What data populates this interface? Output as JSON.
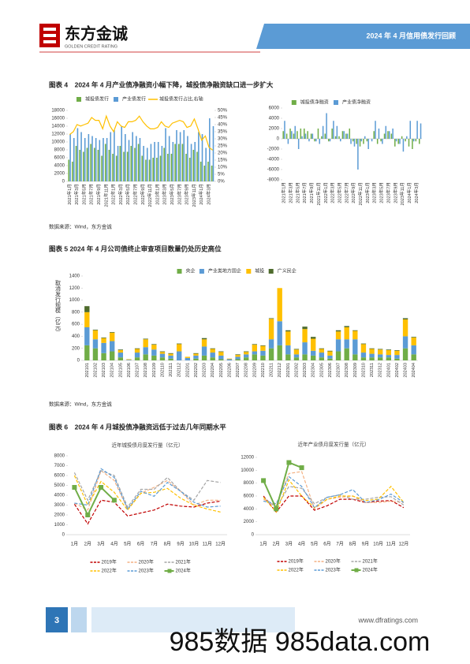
{
  "header": {
    "logo": "东方金诚",
    "logo_sub": "GOLDEN CREDIT RATING",
    "banner": "2024 年 4 月信用债发行回顾"
  },
  "figures": [
    {
      "caption": "图表 4　2024 年 4 月产业债净融资小幅下降，城投债净融资缺口进一步扩大",
      "source": "数据来源：Wind，东方金诚"
    },
    {
      "caption": "图表 5  2024 年 4 月公司债终止审查项目数量仍处历史高位",
      "source": "数据来源：Wind，东方金诚"
    },
    {
      "caption": "图表 6　2024 年 4 月城投债净融资远低于过去几年同期水平"
    }
  ],
  "footer": {
    "page": "3",
    "url": "www.dfratings.com"
  },
  "watermark": "985数据 985data.com",
  "chart_data": [
    {
      "type": "bar",
      "categories": [
        "2021年1月",
        null,
        "2021年3月",
        null,
        "2021年5月",
        null,
        "2021年7月",
        null,
        "2021年9月",
        null,
        "2021年11月",
        null,
        "2022年1月",
        null,
        "2022年3月",
        null,
        "2022年5月",
        null,
        "2022年7月",
        null,
        "2022年9月",
        null,
        "2022年11月",
        null,
        "2023年1月",
        null,
        "2023年3月",
        null,
        "2023年5月",
        null,
        "2023年7月",
        null,
        "2023年9月",
        null,
        "2023年11月",
        null,
        "2024年1月",
        null,
        "2024年3月",
        null
      ],
      "series": [
        {
          "name": "城投债发行",
          "color": "#70ad47",
          "values": [
            5500,
            5000,
            9000,
            8000,
            7500,
            8500,
            9500,
            8500,
            8000,
            6500,
            9500,
            8000,
            7000,
            6500,
            9000,
            7500,
            7500,
            9000,
            8500,
            9500,
            6500,
            5500,
            5500,
            6000,
            6000,
            6500,
            8500,
            7000,
            7000,
            9500,
            9500,
            9500,
            7000,
            6000,
            8000,
            7500,
            5000,
            4000,
            5000,
            4000
          ]
        },
        {
          "name": "产业债发行",
          "color": "#5b9bd5",
          "values": [
            12000,
            11000,
            13500,
            12500,
            11000,
            12000,
            11500,
            11000,
            10500,
            11000,
            11000,
            12500,
            13000,
            9000,
            14000,
            12000,
            10500,
            12500,
            11500,
            11000,
            9000,
            8500,
            9500,
            10000,
            10000,
            9000,
            13500,
            11500,
            10000,
            13000,
            12500,
            13000,
            11500,
            9500,
            10000,
            12500,
            12000,
            8500,
            16000,
            14000
          ]
        },
        {
          "name": "城投债发行占比,右轴",
          "color": "#ffc000",
          "type": "line",
          "axis": "y2",
          "values": [
            33,
            35,
            40,
            39,
            40,
            41,
            45,
            43,
            43,
            37,
            46,
            39,
            35,
            42,
            39,
            38,
            42,
            42,
            43,
            46,
            42,
            39,
            37,
            37,
            38,
            42,
            39,
            38,
            41,
            42,
            43,
            42,
            38,
            39,
            44,
            37,
            29,
            32,
            24,
            22
          ]
        }
      ],
      "ylim": [
        0,
        18000
      ],
      "yticks": [
        0,
        2000,
        4000,
        6000,
        8000,
        10000,
        12000,
        14000,
        16000,
        18000
      ],
      "y2lim": [
        0,
        50
      ],
      "y2ticks": [
        {
          "value": 0,
          "label": "0%"
        },
        {
          "value": 5,
          "label": "5%"
        },
        {
          "value": 10,
          "label": "10%"
        },
        {
          "value": 15,
          "label": "15%"
        },
        {
          "value": 20,
          "label": "20%"
        },
        {
          "value": 25,
          "label": "25%"
        },
        {
          "value": 30,
          "label": "30%"
        },
        {
          "value": 35,
          "label": "35%"
        },
        {
          "value": 40,
          "label": "40%"
        },
        {
          "value": 45,
          "label": "45%"
        },
        {
          "value": 50,
          "label": "50%"
        }
      ],
      "grid": false
    },
    {
      "type": "bar",
      "categories": [
        "2021年1月",
        null,
        "2021年3月",
        null,
        "2021年5月",
        null,
        "2021年7月",
        null,
        "2021年9月",
        null,
        "2021年11月",
        null,
        "2022年1月",
        null,
        "2022年3月",
        null,
        "2022年5月",
        null,
        "2022年7月",
        null,
        "2022年9月",
        null,
        "2022年11月",
        null,
        "2023年1月",
        null,
        "2023年3月",
        null,
        "2023年5月",
        null,
        "2023年7月",
        null,
        "2023年9月",
        null,
        "2023年11月",
        null,
        "2024年1月",
        null,
        "2024年3月",
        null
      ],
      "series": [
        {
          "name": "城投债净融资",
          "color": "#70ad47",
          "values": [
            1500,
            1000,
            2000,
            1000,
            1500,
            2000,
            2000,
            1500,
            1000,
            -500,
            2000,
            500,
            1000,
            -500,
            2000,
            500,
            500,
            1500,
            1000,
            2000,
            -500,
            -1000,
            -1500,
            -1000,
            -500,
            0,
            1500,
            -1000,
            -500,
            1000,
            1500,
            1000,
            -1500,
            -1000,
            500,
            -500,
            -1500,
            -2000,
            -500,
            -1000
          ]
        },
        {
          "name": "产业债净融资",
          "color": "#5b9bd5",
          "values": [
            3500,
            -1000,
            1500,
            2500,
            -2000,
            500,
            1000,
            -500,
            1000,
            -500,
            -1000,
            2500,
            5000,
            -500,
            3500,
            2500,
            -500,
            1500,
            1000,
            -1000,
            -1500,
            -6000,
            -500,
            500,
            -2000,
            -500,
            3500,
            2000,
            -1000,
            2500,
            1500,
            2000,
            -500,
            -1000,
            -2500,
            500,
            3500,
            -500,
            3500,
            3000
          ]
        }
      ],
      "ylim": [
        -8000,
        6000
      ],
      "yticks": [
        -8000,
        -6000,
        -4000,
        -2000,
        0,
        2000,
        4000,
        6000
      ],
      "grid": false
    },
    {
      "type": "stacked_bar",
      "y_label": "取消发行规模（亿元）",
      "categories": [
        "202101",
        "202102",
        "202103",
        "202104",
        "202105",
        "202106",
        "202107",
        "202108",
        "202109",
        "202110",
        "202111",
        "202112",
        "202201",
        "202202",
        "202203",
        "202204",
        "202205",
        "202206",
        "202207",
        "202208",
        "202209",
        "202210",
        "202211",
        "202212",
        "202301",
        "202302",
        "202303",
        "202304",
        "202305",
        "202306",
        "202307",
        "202308",
        "202309",
        "202310",
        "202311",
        "202312",
        "202401",
        "202402",
        "202403",
        "202404"
      ],
      "series": [
        {
          "name": "央企",
          "color": "#70ad47",
          "values": [
            250,
            200,
            120,
            150,
            50,
            0,
            50,
            100,
            80,
            50,
            30,
            0,
            0,
            30,
            80,
            50,
            20,
            0,
            20,
            50,
            100,
            80,
            200,
            250,
            100,
            50,
            100,
            80,
            50,
            30,
            150,
            200,
            100,
            50,
            50,
            50,
            50,
            30,
            200,
            100
          ]
        },
        {
          "name": "产业类地方国企",
          "color": "#5b9bd5",
          "values": [
            300,
            150,
            170,
            170,
            80,
            10,
            80,
            120,
            100,
            60,
            50,
            150,
            40,
            50,
            150,
            80,
            60,
            20,
            40,
            50,
            50,
            80,
            150,
            400,
            150,
            50,
            200,
            80,
            80,
            50,
            200,
            150,
            250,
            80,
            60,
            50,
            40,
            60,
            200,
            150
          ]
        },
        {
          "name": "城投",
          "color": "#ffc000",
          "values": [
            250,
            150,
            80,
            140,
            40,
            10,
            60,
            130,
            80,
            30,
            30,
            120,
            20,
            30,
            120,
            60,
            60,
            10,
            30,
            40,
            110,
            80,
            340,
            550,
            230,
            80,
            220,
            200,
            60,
            70,
            130,
            200,
            140,
            140,
            80,
            80,
            80,
            70,
            280,
            130
          ]
        },
        {
          "name": "广义民企",
          "color": "#4e6b2c",
          "values": [
            100,
            10,
            10,
            10,
            10,
            0,
            10,
            10,
            10,
            10,
            10,
            10,
            0,
            10,
            20,
            10,
            10,
            0,
            10,
            10,
            10,
            10,
            10,
            0,
            20,
            10,
            40,
            30,
            10,
            10,
            20,
            20,
            10,
            10,
            10,
            10,
            10,
            10,
            20,
            10
          ]
        }
      ],
      "ylim": [
        0,
        1400
      ],
      "yticks": [
        0,
        200,
        400,
        600,
        800,
        1000,
        1200,
        1400
      ],
      "grid": false
    },
    {
      "type": "line",
      "title": "近年城投债月度发行量（亿元）",
      "categories": [
        "1月",
        "2月",
        "3月",
        "4月",
        "5月",
        "6月",
        "7月",
        "8月",
        "9月",
        "10月",
        "11月",
        "12月"
      ],
      "series": [
        {
          "name": "2019年",
          "color": "#c00000",
          "dash": true,
          "values": [
            3100,
            1100,
            3500,
            3300,
            1900,
            2200,
            2500,
            3100,
            2900,
            2800,
            3200,
            3400
          ]
        },
        {
          "name": "2020年",
          "color": "#f4b183",
          "dash": true,
          "values": [
            3200,
            2500,
            6500,
            5500,
            2600,
            4200,
            4800,
            5500,
            4400,
            3000,
            3500,
            3500
          ]
        },
        {
          "name": "2021年",
          "color": "#a5a5a5",
          "dash": true,
          "values": [
            6300,
            3500,
            6500,
            6000,
            2800,
            4600,
            4600,
            5800,
            4400,
            3500,
            5500,
            5300
          ]
        },
        {
          "name": "2022年",
          "color": "#ffc000",
          "dash": true,
          "values": [
            6000,
            3000,
            5400,
            4300,
            2500,
            4200,
            4300,
            4700,
            3700,
            3000,
            2600,
            2300
          ]
        },
        {
          "name": "2023年",
          "color": "#5b9bd5",
          "dash": true,
          "values": [
            3200,
            3000,
            6700,
            5800,
            2600,
            4400,
            3900,
            5300,
            4400,
            3300,
            2800,
            2900
          ]
        },
        {
          "name": "2024年",
          "color": "#70ad47",
          "marker": "square",
          "values": [
            4800,
            2000,
            4800,
            3500,
            null,
            null,
            null,
            null,
            null,
            null,
            null,
            null
          ]
        }
      ],
      "ylim": [
        0,
        8000
      ],
      "yticks": [
        0,
        1000,
        2000,
        3000,
        4000,
        5000,
        6000,
        7000,
        8000
      ],
      "grid": false
    },
    {
      "type": "line",
      "title": "近年产业债月度发行量（亿元）",
      "categories": [
        "1月",
        "2月",
        "3月",
        "4月",
        "5月",
        "6月",
        "7月",
        "8月",
        "9月",
        "10月",
        "11月",
        "12月"
      ],
      "series": [
        {
          "name": "2019年",
          "color": "#c00000",
          "dash": true,
          "values": [
            6000,
            3500,
            6000,
            6000,
            3800,
            4500,
            5500,
            5500,
            5000,
            5200,
            5300,
            4200
          ]
        },
        {
          "name": "2020年",
          "color": "#f4b183",
          "dash": true,
          "values": [
            5500,
            4500,
            9500,
            9800,
            4000,
            5500,
            5800,
            6000,
            5000,
            5000,
            5200,
            5000
          ]
        },
        {
          "name": "2021年",
          "color": "#a5a5a5",
          "dash": true,
          "values": [
            5800,
            4200,
            7500,
            7200,
            4800,
            5800,
            6200,
            5500,
            5500,
            5800,
            5900,
            4600
          ]
        },
        {
          "name": "2022年",
          "color": "#ffc000",
          "dash": true,
          "values": [
            5800,
            3500,
            8500,
            6000,
            4200,
            5500,
            6000,
            6000,
            5300,
            5500,
            7500,
            5000
          ]
        },
        {
          "name": "2023年",
          "color": "#5b9bd5",
          "dash": true,
          "values": [
            5200,
            4800,
            9000,
            7500,
            4200,
            5800,
            6200,
            7000,
            5000,
            5400,
            6300,
            5000
          ]
        },
        {
          "name": "2024年",
          "color": "#70ad47",
          "marker": "square",
          "values": [
            8400,
            4000,
            11200,
            10400,
            null,
            null,
            null,
            null,
            null,
            null,
            null,
            null
          ]
        }
      ],
      "ylim": [
        0,
        12000
      ],
      "yticks": [
        0,
        2000,
        4000,
        6000,
        8000,
        10000,
        12000
      ],
      "grid": false
    }
  ]
}
